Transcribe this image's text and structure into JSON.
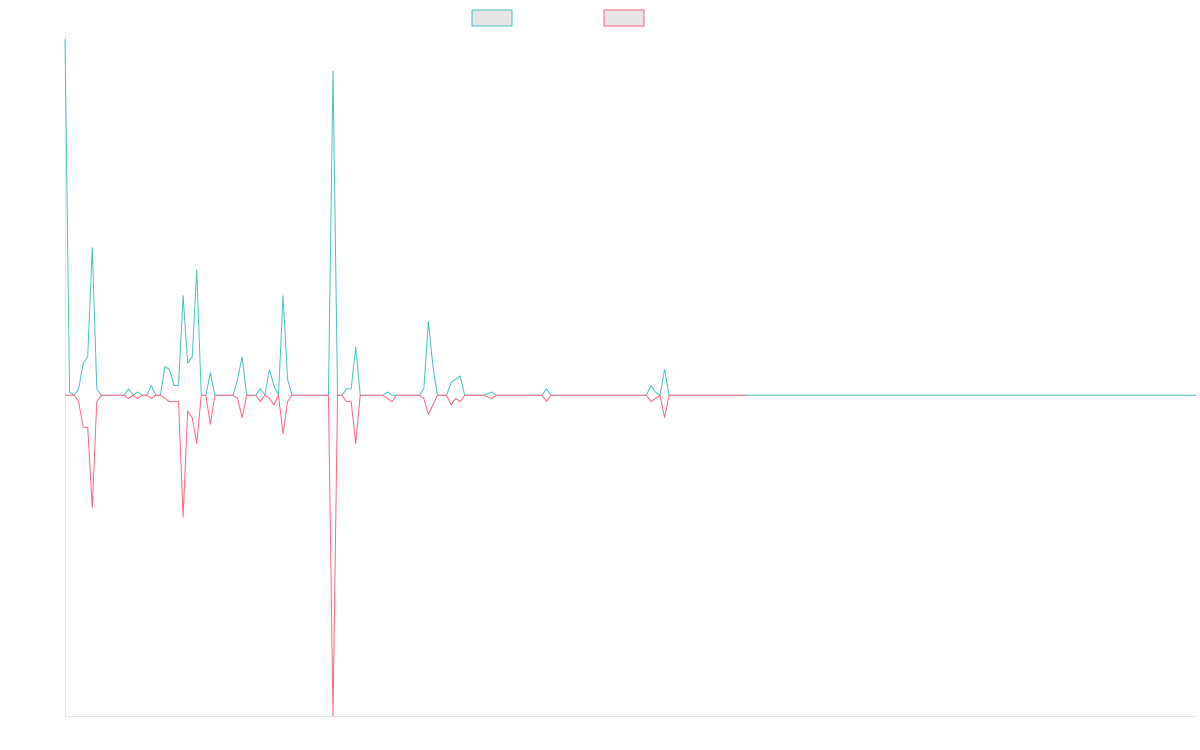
{
  "chart_data": {
    "type": "line",
    "title": "",
    "xlabel": "",
    "ylabel": "",
    "ylim": [
      -1,
      1.12
    ],
    "x_count": 250,
    "grid": false,
    "legend_position": "top-center",
    "legend_swatch_fill": "#e6e6e6",
    "series": [
      {
        "color": "#4bc0c0",
        "points": [
          [
            0,
            1.11
          ],
          [
            1,
            0.01
          ],
          [
            2,
            0.0
          ],
          [
            3,
            0.02
          ],
          [
            4,
            0.1
          ],
          [
            5,
            0.12
          ],
          [
            6,
            0.46
          ],
          [
            7,
            0.02
          ],
          [
            8,
            0
          ],
          [
            9,
            0
          ],
          [
            10,
            0
          ],
          [
            11,
            0
          ],
          [
            12,
            0
          ],
          [
            13,
            0
          ],
          [
            14,
            0.02
          ],
          [
            15,
            0
          ],
          [
            16,
            0.01
          ],
          [
            17,
            0
          ],
          [
            18,
            0
          ],
          [
            19,
            0.03
          ],
          [
            20,
            0
          ],
          [
            21,
            0
          ],
          [
            22,
            0.09
          ],
          [
            23,
            0.08
          ],
          [
            24,
            0.03
          ],
          [
            25,
            0.03
          ],
          [
            26,
            0.31
          ],
          [
            27,
            0.1
          ],
          [
            28,
            0.12
          ],
          [
            29,
            0.39
          ],
          [
            30,
            0
          ],
          [
            31,
            0
          ],
          [
            32,
            0.07
          ],
          [
            33,
            0
          ],
          [
            34,
            0
          ],
          [
            35,
            0
          ],
          [
            36,
            0
          ],
          [
            37,
            0
          ],
          [
            38,
            0.05
          ],
          [
            39,
            0.12
          ],
          [
            40,
            0
          ],
          [
            41,
            0
          ],
          [
            42,
            0
          ],
          [
            43,
            0.02
          ],
          [
            44,
            0
          ],
          [
            45,
            0.08
          ],
          [
            46,
            0.03
          ],
          [
            47,
            0
          ],
          [
            48,
            0.31
          ],
          [
            49,
            0.05
          ],
          [
            50,
            0
          ],
          [
            55,
            0
          ],
          [
            58,
            0
          ],
          [
            59,
            1.01
          ],
          [
            60,
            0
          ],
          [
            61,
            0
          ],
          [
            62,
            0.02
          ],
          [
            63,
            0.02
          ],
          [
            64,
            0.15
          ],
          [
            65,
            0
          ],
          [
            70,
            0
          ],
          [
            71,
            0.01
          ],
          [
            72,
            0
          ],
          [
            75,
            0
          ],
          [
            78,
            0
          ],
          [
            79,
            0.02
          ],
          [
            80,
            0.23
          ],
          [
            81,
            0.09
          ],
          [
            82,
            0
          ],
          [
            83,
            0
          ],
          [
            84,
            0
          ],
          [
            85,
            0.04
          ],
          [
            86,
            0.05
          ],
          [
            87,
            0.06
          ],
          [
            88,
            0
          ],
          [
            92,
            0
          ],
          [
            94,
            0.01
          ],
          [
            95,
            0
          ],
          [
            100,
            0
          ],
          [
            105,
            0
          ],
          [
            106,
            0.02
          ],
          [
            107,
            0
          ],
          [
            110,
            0
          ],
          [
            120,
            0
          ],
          [
            125,
            0
          ],
          [
            128,
            0
          ],
          [
            129,
            0.03
          ],
          [
            130,
            0.01
          ],
          [
            131,
            0
          ],
          [
            132,
            0.08
          ],
          [
            133,
            0
          ],
          [
            136,
            0
          ],
          [
            140,
            0
          ],
          [
            150,
            0
          ],
          [
            150,
            0
          ],
          [
            151,
            0
          ],
          [
            152,
            0
          ],
          [
            153,
            0
          ],
          [
            154,
            0
          ],
          [
            155,
            0
          ],
          [
            156,
            0
          ],
          [
            157,
            0
          ],
          [
            158,
            0
          ],
          [
            159,
            0
          ],
          [
            160,
            0
          ],
          [
            161,
            0
          ],
          [
            162,
            0
          ],
          [
            163,
            0
          ],
          [
            164,
            0
          ],
          [
            165,
            0
          ],
          [
            166,
            0
          ],
          [
            167,
            0
          ],
          [
            168,
            0
          ],
          [
            169,
            0
          ],
          [
            170,
            0
          ],
          [
            171,
            0
          ],
          [
            172,
            0
          ],
          [
            173,
            0
          ],
          [
            174,
            0
          ],
          [
            175,
            0
          ],
          [
            176,
            0
          ],
          [
            177,
            0
          ],
          [
            178,
            0
          ],
          [
            179,
            0
          ],
          [
            180,
            0
          ],
          [
            181,
            0
          ],
          [
            182,
            0
          ],
          [
            183,
            0
          ],
          [
            184,
            0
          ],
          [
            185,
            0
          ],
          [
            186,
            0
          ],
          [
            187,
            0
          ],
          [
            188,
            0
          ],
          [
            189,
            0
          ],
          [
            190,
            0
          ],
          [
            191,
            0
          ],
          [
            192,
            0
          ],
          [
            193,
            0
          ],
          [
            194,
            0
          ],
          [
            195,
            0
          ],
          [
            196,
            0
          ],
          [
            197,
            0
          ],
          [
            198,
            0
          ],
          [
            199,
            0
          ],
          [
            200,
            0
          ],
          [
            201,
            0
          ],
          [
            202,
            0
          ],
          [
            203,
            0
          ],
          [
            204,
            0
          ],
          [
            205,
            0
          ],
          [
            206,
            0
          ],
          [
            207,
            0
          ],
          [
            208,
            0
          ],
          [
            209,
            0
          ],
          [
            210,
            0
          ],
          [
            211,
            0
          ],
          [
            212,
            0
          ],
          [
            213,
            0
          ],
          [
            214,
            0
          ],
          [
            215,
            0
          ],
          [
            216,
            0
          ],
          [
            217,
            0
          ],
          [
            218,
            0
          ],
          [
            219,
            0
          ],
          [
            220,
            0
          ],
          [
            221,
            0
          ],
          [
            222,
            0
          ],
          [
            223,
            0
          ],
          [
            224,
            0
          ],
          [
            225,
            0
          ],
          [
            226,
            0
          ],
          [
            227,
            0
          ],
          [
            228,
            0
          ],
          [
            229,
            0
          ],
          [
            230,
            0
          ],
          [
            231,
            0
          ],
          [
            232,
            0
          ],
          [
            233,
            0
          ],
          [
            234,
            0
          ],
          [
            235,
            0
          ],
          [
            236,
            0
          ],
          [
            237,
            0
          ],
          [
            238,
            0
          ],
          [
            239,
            0
          ],
          [
            240,
            0
          ],
          [
            241,
            0
          ],
          [
            242,
            0
          ],
          [
            243,
            0
          ],
          [
            244,
            0
          ],
          [
            245,
            0
          ],
          [
            246,
            0
          ],
          [
            247,
            0
          ],
          [
            248,
            0
          ],
          [
            249,
            0
          ]
        ]
      },
      {
        "color": "#ff6384",
        "points": [
          [
            0,
            0
          ],
          [
            1,
            0
          ],
          [
            2,
            0
          ],
          [
            3,
            -0.02
          ],
          [
            4,
            -0.1
          ],
          [
            5,
            -0.1
          ],
          [
            6,
            -0.35
          ],
          [
            7,
            -0.02
          ],
          [
            8,
            0
          ],
          [
            10,
            0
          ],
          [
            12,
            0
          ],
          [
            13,
            0
          ],
          [
            14,
            -0.01
          ],
          [
            15,
            0
          ],
          [
            16,
            -0.01
          ],
          [
            17,
            0
          ],
          [
            18,
            0
          ],
          [
            19,
            -0.01
          ],
          [
            20,
            0
          ],
          [
            21,
            0
          ],
          [
            22,
            -0.01
          ],
          [
            23,
            -0.02
          ],
          [
            24,
            -0.02
          ],
          [
            25,
            -0.02
          ],
          [
            26,
            -0.38
          ],
          [
            27,
            -0.05
          ],
          [
            28,
            -0.07
          ],
          [
            29,
            -0.15
          ],
          [
            30,
            0
          ],
          [
            31,
            0
          ],
          [
            32,
            -0.09
          ],
          [
            33,
            0
          ],
          [
            34,
            0
          ],
          [
            35,
            0
          ],
          [
            36,
            0
          ],
          [
            37,
            0
          ],
          [
            38,
            -0.01
          ],
          [
            39,
            -0.07
          ],
          [
            40,
            0
          ],
          [
            41,
            0
          ],
          [
            42,
            0
          ],
          [
            43,
            -0.02
          ],
          [
            44,
            0
          ],
          [
            45,
            -0.01
          ],
          [
            46,
            -0.03
          ],
          [
            47,
            0
          ],
          [
            48,
            -0.12
          ],
          [
            49,
            -0.02
          ],
          [
            50,
            0
          ],
          [
            55,
            0
          ],
          [
            58,
            0
          ],
          [
            59,
            -1.0
          ],
          [
            60,
            0
          ],
          [
            61,
            0
          ],
          [
            62,
            -0.02
          ],
          [
            63,
            -0.02
          ],
          [
            64,
            -0.15
          ],
          [
            65,
            0
          ],
          [
            70,
            0
          ],
          [
            71,
            -0.01
          ],
          [
            72,
            -0.02
          ],
          [
            73,
            0
          ],
          [
            75,
            0
          ],
          [
            78,
            0
          ],
          [
            79,
            -0.01
          ],
          [
            80,
            -0.06
          ],
          [
            81,
            -0.03
          ],
          [
            82,
            0
          ],
          [
            83,
            0
          ],
          [
            84,
            0
          ],
          [
            85,
            -0.03
          ],
          [
            86,
            -0.01
          ],
          [
            87,
            -0.02
          ],
          [
            88,
            0
          ],
          [
            92,
            0
          ],
          [
            94,
            -0.01
          ],
          [
            95,
            0
          ],
          [
            100,
            0
          ],
          [
            105,
            0
          ],
          [
            106,
            -0.02
          ],
          [
            107,
            0
          ],
          [
            110,
            0
          ],
          [
            120,
            0
          ],
          [
            125,
            0
          ],
          [
            128,
            0
          ],
          [
            129,
            -0.02
          ],
          [
            130,
            -0.01
          ],
          [
            131,
            0
          ],
          [
            132,
            -0.07
          ],
          [
            133,
            0
          ],
          [
            136,
            0
          ],
          [
            140,
            0
          ],
          [
            145,
            0
          ],
          [
            150,
            0
          ]
        ]
      }
    ]
  }
}
